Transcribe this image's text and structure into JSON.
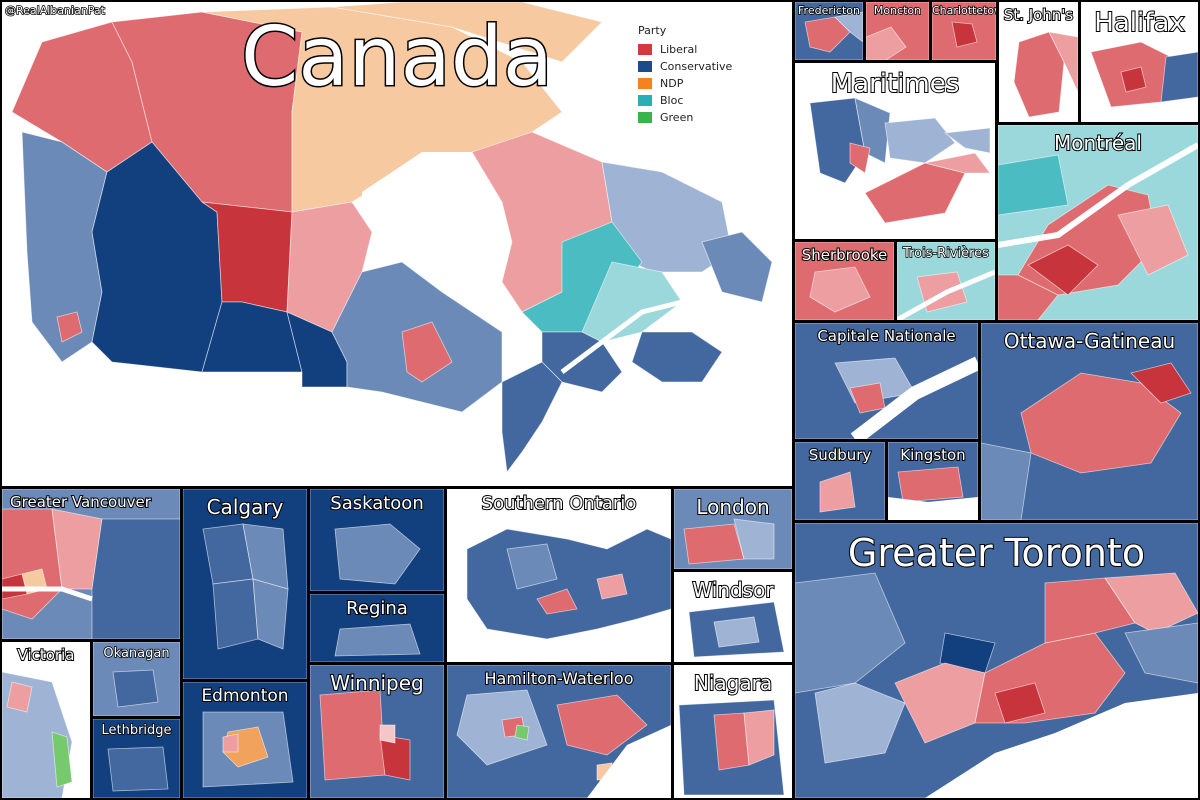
{
  "credit": "@RealAlbanianPat",
  "legend": {
    "title": "Party",
    "items": [
      {
        "label": "Liberal",
        "color": "#d33a3f"
      },
      {
        "label": "Conservative",
        "color": "#1d4a8c"
      },
      {
        "label": "NDP",
        "color": "#f4821f"
      },
      {
        "label": "Bloc",
        "color": "#2aaeb5"
      },
      {
        "label": "Green",
        "color": "#3ab34a"
      }
    ]
  },
  "colors": {
    "lib_dark": "#c8343b",
    "lib": "#de6b70",
    "lib_light": "#ec9ea1",
    "lib_pale": "#f3c7c8",
    "con_dark": "#123f7e",
    "con": "#43689f",
    "con_mid": "#6c8ab8",
    "con_light": "#9fb4d4",
    "ndp": "#f1a25c",
    "ndp_pale": "#f7c9a0",
    "bloc": "#4bbcc2",
    "bloc_light": "#9bd8db",
    "green": "#77c96e",
    "water": "#ffffff"
  },
  "panels": {
    "canada": "Canada",
    "fredericton": "Fredericton",
    "moncton": "Moncton",
    "charlottetown": "Charlottetown",
    "st_johns": "St. John's",
    "halifax": "Halifax",
    "maritimes": "Maritimes",
    "montreal": "Montréal",
    "sherbrooke": "Sherbrooke",
    "trois_rivieres": "Trois-Rivières",
    "capitale_nationale": "Capitale Nationale",
    "ottawa_gatineau": "Ottawa-Gatineau",
    "sudbury": "Sudbury",
    "kingston": "Kingston",
    "greater_vancouver": "Greater Vancouver",
    "calgary": "Calgary",
    "saskatoon": "Saskatoon",
    "regina": "Regina",
    "southern_ontario": "Southern Ontario",
    "london": "London",
    "windsor": "Windsor",
    "greater_toronto": "Greater Toronto",
    "victoria": "Victoria",
    "okanagan": "Okanagan",
    "lethbridge": "Lethbridge",
    "edmonton": "Edmonton",
    "winnipeg": "Winnipeg",
    "hamilton_waterloo": "Hamilton-Waterloo",
    "niagara": "Niagara"
  }
}
